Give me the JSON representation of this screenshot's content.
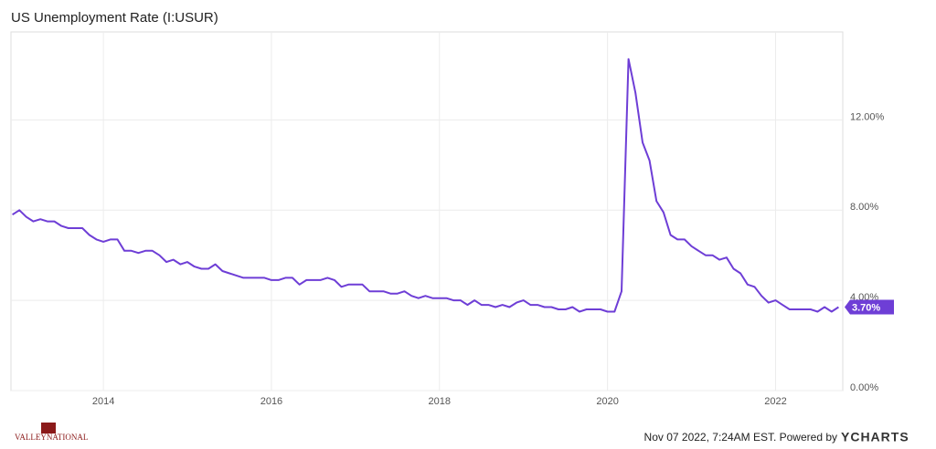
{
  "chart_data": {
    "type": "line",
    "title": "US Unemployment Rate (I:USUR)",
    "x": [
      2012.917,
      2013,
      2013.083,
      2013.167,
      2013.25,
      2013.333,
      2013.417,
      2013.5,
      2013.583,
      2013.667,
      2013.75,
      2013.833,
      2013.917,
      2014,
      2014.083,
      2014.167,
      2014.25,
      2014.333,
      2014.417,
      2014.5,
      2014.583,
      2014.667,
      2014.75,
      2014.833,
      2014.917,
      2015,
      2015.083,
      2015.167,
      2015.25,
      2015.333,
      2015.417,
      2015.5,
      2015.583,
      2015.667,
      2015.75,
      2015.833,
      2015.917,
      2016,
      2016.083,
      2016.167,
      2016.25,
      2016.333,
      2016.417,
      2016.5,
      2016.583,
      2016.667,
      2016.75,
      2016.833,
      2016.917,
      2017,
      2017.083,
      2017.167,
      2017.25,
      2017.333,
      2017.417,
      2017.5,
      2017.583,
      2017.667,
      2017.75,
      2017.833,
      2017.917,
      2018,
      2018.083,
      2018.167,
      2018.25,
      2018.333,
      2018.417,
      2018.5,
      2018.583,
      2018.667,
      2018.75,
      2018.833,
      2018.917,
      2019,
      2019.083,
      2019.167,
      2019.25,
      2019.333,
      2019.417,
      2019.5,
      2019.583,
      2019.667,
      2019.75,
      2019.833,
      2019.917,
      2020,
      2020.083,
      2020.167,
      2020.25,
      2020.333,
      2020.417,
      2020.5,
      2020.583,
      2020.667,
      2020.75,
      2020.833,
      2020.917,
      2021,
      2021.083,
      2021.167,
      2021.25,
      2021.333,
      2021.417,
      2021.5,
      2021.583,
      2021.667,
      2021.75,
      2021.833,
      2021.917,
      2022,
      2022.083,
      2022.167,
      2022.25,
      2022.333,
      2022.417,
      2022.5,
      2022.583,
      2022.667,
      2022.75
    ],
    "series": [
      {
        "color": "#6e3ed6",
        "values": [
          7.8,
          8.0,
          7.7,
          7.5,
          7.6,
          7.5,
          7.5,
          7.3,
          7.2,
          7.2,
          7.2,
          6.9,
          6.7,
          6.6,
          6.7,
          6.7,
          6.2,
          6.2,
          6.1,
          6.2,
          6.2,
          6.0,
          5.7,
          5.8,
          5.6,
          5.7,
          5.5,
          5.4,
          5.4,
          5.6,
          5.3,
          5.2,
          5.1,
          5.0,
          5.0,
          5.0,
          5.0,
          4.9,
          4.9,
          5.0,
          5.0,
          4.7,
          4.9,
          4.9,
          4.9,
          5.0,
          4.9,
          4.6,
          4.7,
          4.7,
          4.7,
          4.4,
          4.4,
          4.4,
          4.3,
          4.3,
          4.4,
          4.2,
          4.1,
          4.2,
          4.1,
          4.1,
          4.1,
          4.0,
          4.0,
          3.8,
          4.0,
          3.8,
          3.8,
          3.7,
          3.8,
          3.7,
          3.9,
          4.0,
          3.8,
          3.8,
          3.7,
          3.7,
          3.6,
          3.6,
          3.7,
          3.5,
          3.6,
          3.6,
          3.6,
          3.5,
          3.5,
          4.4,
          14.7,
          13.2,
          11.0,
          10.2,
          8.4,
          7.9,
          6.9,
          6.7,
          6.7,
          6.4,
          6.2,
          6.0,
          6.0,
          5.8,
          5.9,
          5.4,
          5.2,
          4.7,
          4.6,
          4.2,
          3.9,
          4.0,
          3.8,
          3.6,
          3.6,
          3.6,
          3.6,
          3.5,
          3.7,
          3.5,
          3.7
        ]
      }
    ],
    "last_label": {
      "value": 3.7,
      "label": "3.70%"
    },
    "xlim": [
      2012.9,
      2022.8
    ],
    "xticks": [
      2014,
      2016,
      2018,
      2020,
      2022
    ],
    "ylim": [
      0,
      15.9
    ],
    "yticks": [
      {
        "value": 0,
        "label": "0.00%"
      },
      {
        "value": 4,
        "label": "4.00%"
      },
      {
        "value": 8,
        "label": "8.00%"
      },
      {
        "value": 12,
        "label": "12.00%"
      }
    ],
    "grid": true
  },
  "footer": {
    "logo": "VALLEYNATIONAL",
    "timestamp": "Nov 07 2022, 7:24AM EST. Powered by",
    "brand": "YCHARTS"
  }
}
